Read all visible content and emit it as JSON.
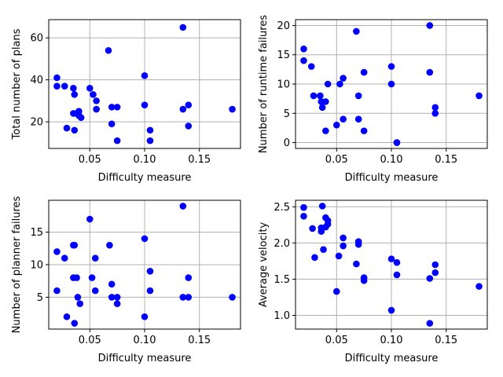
{
  "chart_data": [
    {
      "type": "scatter",
      "title": "",
      "xlabel": "Difficulty measure",
      "ylabel": "Total number of plans",
      "xlim": [
        0.0125,
        0.1875
      ],
      "ylim": [
        7.3,
        68.7
      ],
      "xticks": [
        0.05,
        0.1,
        0.15
      ],
      "xtick_labels": [
        "0.05",
        "0.10",
        "0.15"
      ],
      "yticks": [
        20,
        40,
        60
      ],
      "ytick_labels": [
        "20",
        "40",
        "60"
      ],
      "grid": true,
      "color": "#0000ff",
      "points": [
        {
          "x": 0.02,
          "y": 41
        },
        {
          "x": 0.02,
          "y": 37
        },
        {
          "x": 0.027,
          "y": 37
        },
        {
          "x": 0.029,
          "y": 17
        },
        {
          "x": 0.035,
          "y": 36
        },
        {
          "x": 0.036,
          "y": 33
        },
        {
          "x": 0.035,
          "y": 24
        },
        {
          "x": 0.036,
          "y": 16
        },
        {
          "x": 0.038,
          "y": 24
        },
        {
          "x": 0.04,
          "y": 25
        },
        {
          "x": 0.04,
          "y": 23
        },
        {
          "x": 0.042,
          "y": 22
        },
        {
          "x": 0.05,
          "y": 36
        },
        {
          "x": 0.053,
          "y": 33
        },
        {
          "x": 0.056,
          "y": 30
        },
        {
          "x": 0.056,
          "y": 26
        },
        {
          "x": 0.067,
          "y": 54
        },
        {
          "x": 0.07,
          "y": 27
        },
        {
          "x": 0.07,
          "y": 19
        },
        {
          "x": 0.075,
          "y": 27
        },
        {
          "x": 0.075,
          "y": 11
        },
        {
          "x": 0.1,
          "y": 42
        },
        {
          "x": 0.1,
          "y": 28
        },
        {
          "x": 0.105,
          "y": 16
        },
        {
          "x": 0.105,
          "y": 11
        },
        {
          "x": 0.135,
          "y": 65
        },
        {
          "x": 0.135,
          "y": 26
        },
        {
          "x": 0.14,
          "y": 28
        },
        {
          "x": 0.14,
          "y": 18
        },
        {
          "x": 0.18,
          "y": 26
        }
      ]
    },
    {
      "type": "scatter",
      "title": "",
      "xlabel": "Difficulty measure",
      "ylabel": "Number of runtime failures",
      "xlim": [
        0.0125,
        0.1875
      ],
      "ylim": [
        -1.0,
        21.0
      ],
      "xticks": [
        0.05,
        0.1,
        0.15
      ],
      "xtick_labels": [
        "0.05",
        "0.10",
        "0.15"
      ],
      "yticks": [
        0,
        5,
        10,
        15,
        20
      ],
      "ytick_labels": [
        "0",
        "5",
        "10",
        "15",
        "20"
      ],
      "grid": true,
      "color": "#0000ff",
      "points": [
        {
          "x": 0.02,
          "y": 16
        },
        {
          "x": 0.02,
          "y": 14
        },
        {
          "x": 0.027,
          "y": 13
        },
        {
          "x": 0.029,
          "y": 8
        },
        {
          "x": 0.035,
          "y": 8
        },
        {
          "x": 0.036,
          "y": 7
        },
        {
          "x": 0.037,
          "y": 6
        },
        {
          "x": 0.04,
          "y": 7
        },
        {
          "x": 0.04,
          "y": 2
        },
        {
          "x": 0.042,
          "y": 10
        },
        {
          "x": 0.05,
          "y": 3
        },
        {
          "x": 0.053,
          "y": 10
        },
        {
          "x": 0.056,
          "y": 11
        },
        {
          "x": 0.056,
          "y": 4
        },
        {
          "x": 0.068,
          "y": 19
        },
        {
          "x": 0.07,
          "y": 8
        },
        {
          "x": 0.07,
          "y": 4
        },
        {
          "x": 0.075,
          "y": 12
        },
        {
          "x": 0.075,
          "y": 2
        },
        {
          "x": 0.1,
          "y": 13
        },
        {
          "x": 0.1,
          "y": 10
        },
        {
          "x": 0.105,
          "y": 0
        },
        {
          "x": 0.105,
          "y": 0
        },
        {
          "x": 0.135,
          "y": 20
        },
        {
          "x": 0.135,
          "y": 12
        },
        {
          "x": 0.14,
          "y": 6
        },
        {
          "x": 0.14,
          "y": 5
        },
        {
          "x": 0.18,
          "y": 8
        }
      ]
    },
    {
      "type": "scatter",
      "title": "",
      "xlabel": "Difficulty measure",
      "ylabel": "Number of planner failures",
      "xlim": [
        0.0125,
        0.1875
      ],
      "ylim": [
        0.1,
        19.9
      ],
      "xticks": [
        0.05,
        0.1,
        0.15
      ],
      "xtick_labels": [
        "0.05",
        "0.10",
        "0.15"
      ],
      "yticks": [
        5,
        10,
        15
      ],
      "ytick_labels": [
        "5",
        "10",
        "15"
      ],
      "grid": true,
      "color": "#0000ff",
      "points": [
        {
          "x": 0.02,
          "y": 12
        },
        {
          "x": 0.02,
          "y": 6
        },
        {
          "x": 0.027,
          "y": 11
        },
        {
          "x": 0.029,
          "y": 2
        },
        {
          "x": 0.035,
          "y": 13
        },
        {
          "x": 0.036,
          "y": 13
        },
        {
          "x": 0.035,
          "y": 8
        },
        {
          "x": 0.036,
          "y": 1
        },
        {
          "x": 0.038,
          "y": 8
        },
        {
          "x": 0.039,
          "y": 5
        },
        {
          "x": 0.041,
          "y": 4
        },
        {
          "x": 0.05,
          "y": 17
        },
        {
          "x": 0.052,
          "y": 8
        },
        {
          "x": 0.055,
          "y": 11
        },
        {
          "x": 0.055,
          "y": 6
        },
        {
          "x": 0.068,
          "y": 13
        },
        {
          "x": 0.07,
          "y": 7
        },
        {
          "x": 0.07,
          "y": 5
        },
        {
          "x": 0.075,
          "y": 5
        },
        {
          "x": 0.075,
          "y": 4
        },
        {
          "x": 0.1,
          "y": 14
        },
        {
          "x": 0.1,
          "y": 2
        },
        {
          "x": 0.105,
          "y": 9
        },
        {
          "x": 0.105,
          "y": 6
        },
        {
          "x": 0.135,
          "y": 19
        },
        {
          "x": 0.135,
          "y": 5
        },
        {
          "x": 0.14,
          "y": 8
        },
        {
          "x": 0.14,
          "y": 5
        },
        {
          "x": 0.18,
          "y": 5
        }
      ]
    },
    {
      "type": "scatter",
      "title": "",
      "xlabel": "Difficulty measure",
      "ylabel": "Average velocity",
      "xlim": [
        0.0125,
        0.1875
      ],
      "ylim": [
        0.81,
        2.59
      ],
      "xticks": [
        0.05,
        0.1,
        0.15
      ],
      "xtick_labels": [
        "0.05",
        "0.10",
        "0.15"
      ],
      "yticks": [
        1.0,
        1.5,
        2.0,
        2.5
      ],
      "ytick_labels": [
        "1.0",
        "1.5",
        "2.0",
        "2.5"
      ],
      "grid": true,
      "color": "#0000ff",
      "points": [
        {
          "x": 0.02,
          "y": 2.49
        },
        {
          "x": 0.02,
          "y": 2.37
        },
        {
          "x": 0.028,
          "y": 2.2
        },
        {
          "x": 0.03,
          "y": 1.8
        },
        {
          "x": 0.036,
          "y": 2.21
        },
        {
          "x": 0.036,
          "y": 2.16
        },
        {
          "x": 0.037,
          "y": 2.51
        },
        {
          "x": 0.038,
          "y": 1.91
        },
        {
          "x": 0.04,
          "y": 2.35
        },
        {
          "x": 0.04,
          "y": 2.22
        },
        {
          "x": 0.042,
          "y": 2.31
        },
        {
          "x": 0.042,
          "y": 2.26
        },
        {
          "x": 0.05,
          "y": 1.33
        },
        {
          "x": 0.052,
          "y": 1.82
        },
        {
          "x": 0.056,
          "y": 2.07
        },
        {
          "x": 0.056,
          "y": 1.96
        },
        {
          "x": 0.068,
          "y": 1.71
        },
        {
          "x": 0.07,
          "y": 2.02
        },
        {
          "x": 0.07,
          "y": 1.98
        },
        {
          "x": 0.075,
          "y": 1.52
        },
        {
          "x": 0.075,
          "y": 1.48
        },
        {
          "x": 0.1,
          "y": 1.78
        },
        {
          "x": 0.1,
          "y": 1.07
        },
        {
          "x": 0.105,
          "y": 1.73
        },
        {
          "x": 0.105,
          "y": 1.56
        },
        {
          "x": 0.135,
          "y": 1.51
        },
        {
          "x": 0.135,
          "y": 0.89
        },
        {
          "x": 0.14,
          "y": 1.7
        },
        {
          "x": 0.14,
          "y": 1.59
        },
        {
          "x": 0.18,
          "y": 1.4
        }
      ]
    }
  ]
}
